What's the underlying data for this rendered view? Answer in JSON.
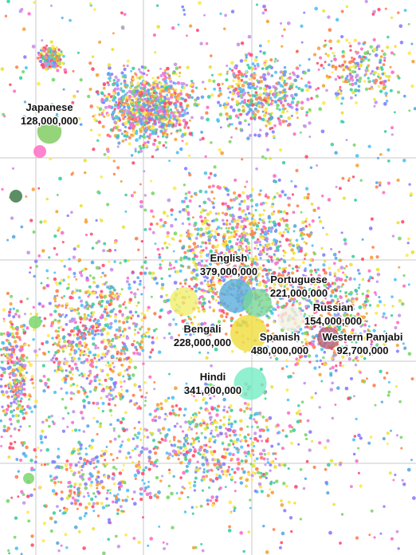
{
  "chart_data": {
    "type": "scatter",
    "title": "",
    "grid": true,
    "background_points": {
      "colors": [
        "#ff6ec7",
        "#7cd66b",
        "#ffe84d",
        "#5aa9e6",
        "#ff7f50",
        "#c792ea",
        "#ff4d6d",
        "#3ccfa0",
        "#f6a23c",
        "#8a7cff",
        "#e8e23a",
        "#4fc3f7"
      ]
    },
    "languages": [
      {
        "name": "Japanese",
        "speakers": "128,000,000",
        "value": 128000000,
        "color": "#7cc95a"
      },
      {
        "name": "English",
        "speakers": "379,000,000",
        "value": 379000000,
        "color": "#5aaee0"
      },
      {
        "name": "Portuguese",
        "speakers": "221,000,000",
        "value": 221000000,
        "color": "#78d69a"
      },
      {
        "name": "Russian",
        "speakers": "154,000,000",
        "value": 154000000,
        "color": "#f4f0e4"
      },
      {
        "name": "Bengali",
        "speakers": "228,000,000",
        "value": 228000000,
        "color": "#f2ee6e"
      },
      {
        "name": "Spanish",
        "speakers": "480,000,000",
        "value": 480000000,
        "color": "#f0dc3c"
      },
      {
        "name": "Western Panjabi",
        "speakers": "92,700,000",
        "value": 92700000,
        "color": "#b8607a"
      },
      {
        "name": "Hindi",
        "speakers": "341,000,000",
        "value": 341000000,
        "color": "#74ecc4"
      }
    ]
  }
}
